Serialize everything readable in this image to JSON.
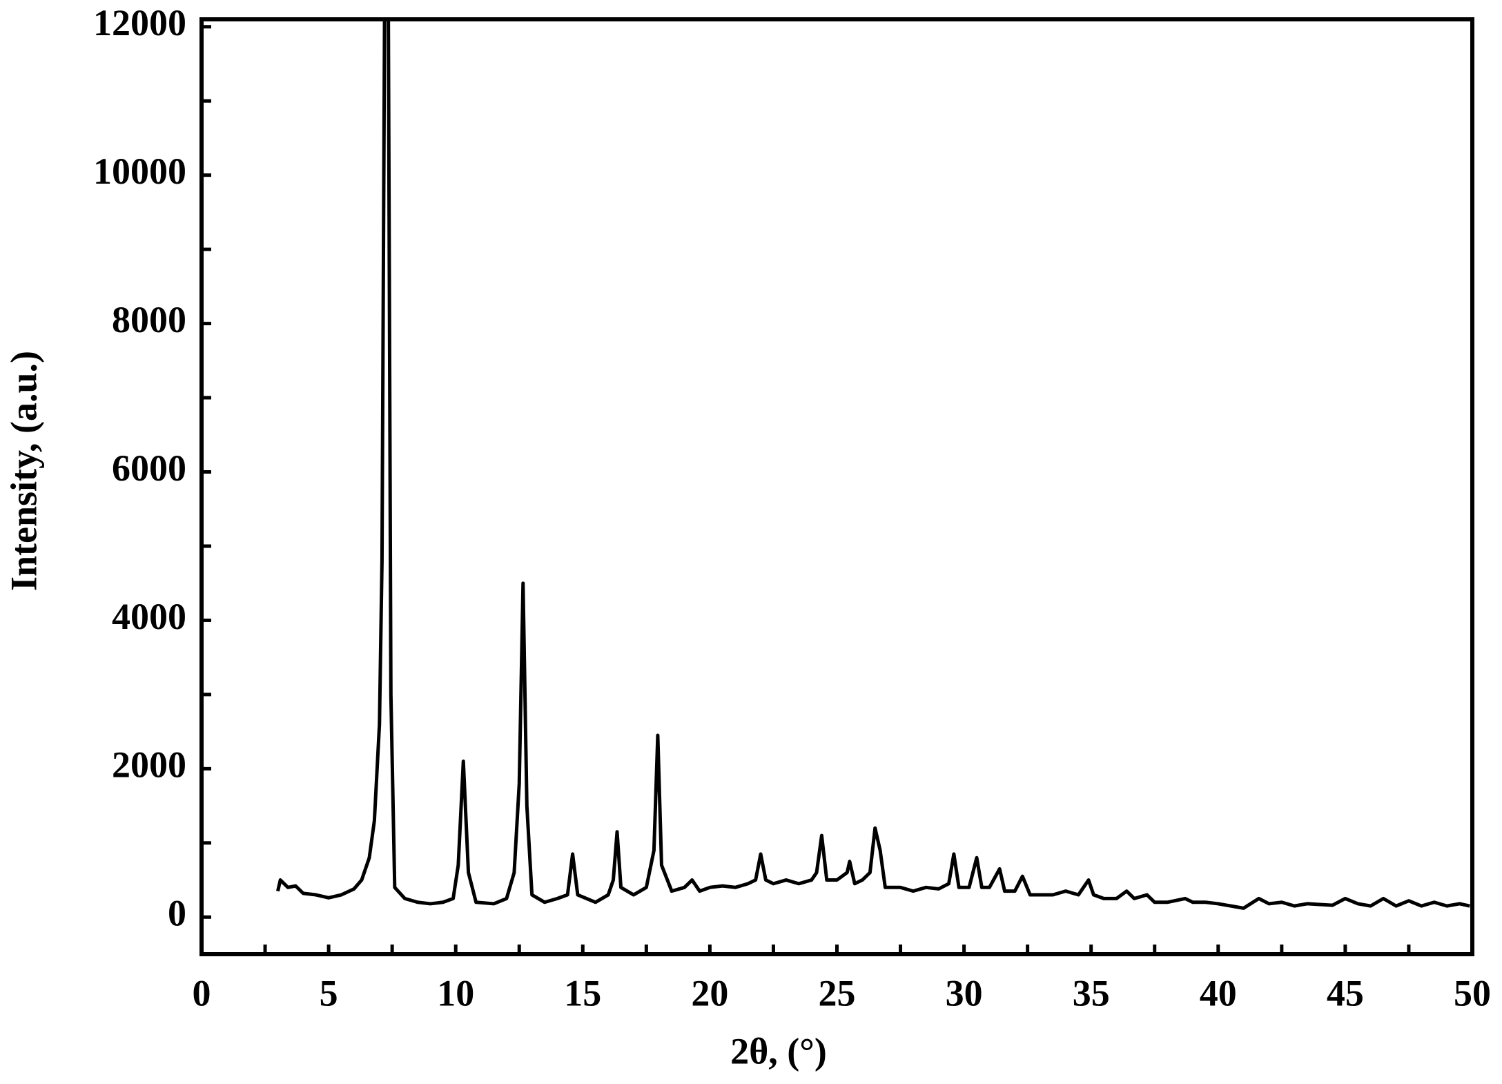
{
  "chart_data": {
    "type": "line",
    "xlabel": "2θ, (°)",
    "ylabel": "Intensity, (a.u.)",
    "xlim": [
      0,
      50
    ],
    "ylim": [
      -500,
      12100
    ],
    "xticks": [
      0,
      5,
      10,
      15,
      20,
      25,
      30,
      35,
      40,
      45,
      50
    ],
    "yticks": [
      0,
      2000,
      4000,
      6000,
      8000,
      10000,
      12000
    ],
    "series": [
      {
        "color": "#000000",
        "x": [
          3.0,
          3.1,
          3.4,
          3.7,
          4.0,
          4.5,
          5.0,
          5.5,
          6.0,
          6.3,
          6.6,
          6.8,
          7.0,
          7.1,
          7.2,
          7.35,
          7.45,
          7.6,
          8.0,
          8.5,
          9.0,
          9.5,
          9.9,
          10.1,
          10.3,
          10.5,
          10.8,
          11.5,
          12.0,
          12.3,
          12.5,
          12.65,
          12.8,
          13.0,
          13.5,
          14.0,
          14.4,
          14.6,
          14.8,
          15.5,
          16.0,
          16.2,
          16.35,
          16.5,
          17.0,
          17.5,
          17.8,
          17.95,
          18.1,
          18.5,
          19.0,
          19.3,
          19.6,
          20.0,
          20.5,
          21.0,
          21.5,
          21.8,
          22.0,
          22.2,
          22.5,
          23.0,
          23.5,
          24.0,
          24.2,
          24.4,
          24.6,
          25.0,
          25.4,
          25.5,
          25.7,
          26.0,
          26.3,
          26.5,
          26.7,
          26.9,
          27.5,
          28.0,
          28.5,
          29.0,
          29.4,
          29.6,
          29.8,
          30.2,
          30.5,
          30.7,
          31.0,
          31.4,
          31.6,
          32.0,
          32.3,
          32.6,
          33.0,
          33.5,
          34.0,
          34.5,
          34.9,
          35.1,
          35.5,
          36.0,
          36.4,
          36.7,
          37.2,
          37.5,
          38.0,
          38.7,
          39.0,
          39.5,
          40.0,
          40.5,
          41.0,
          41.6,
          42.0,
          42.5,
          43.0,
          43.5,
          44.0,
          44.5,
          45.0,
          45.5,
          46.0,
          46.5,
          47.0,
          47.5,
          48.0,
          48.5,
          49.0,
          49.5,
          49.9
        ],
        "values": [
          350,
          500,
          400,
          420,
          320,
          300,
          260,
          300,
          380,
          500,
          800,
          1300,
          2600,
          4800,
          12100,
          12100,
          3000,
          400,
          250,
          200,
          180,
          200,
          250,
          700,
          2100,
          600,
          200,
          180,
          250,
          600,
          1800,
          4500,
          1500,
          300,
          200,
          250,
          300,
          850,
          300,
          200,
          300,
          500,
          1150,
          400,
          300,
          400,
          900,
          2450,
          700,
          350,
          400,
          500,
          350,
          400,
          420,
          400,
          450,
          500,
          850,
          500,
          450,
          500,
          450,
          500,
          600,
          1100,
          500,
          500,
          600,
          750,
          450,
          500,
          600,
          1200,
          900,
          400,
          400,
          350,
          400,
          380,
          450,
          850,
          400,
          400,
          800,
          400,
          400,
          650,
          350,
          350,
          550,
          300,
          300,
          300,
          350,
          300,
          500,
          300,
          250,
          250,
          350,
          250,
          300,
          200,
          200,
          250,
          200,
          200,
          180,
          150,
          120,
          250,
          180,
          200,
          150,
          180,
          170,
          160,
          250,
          180,
          150,
          250,
          150,
          220,
          150,
          200,
          150,
          180,
          150
        ]
      }
    ]
  }
}
